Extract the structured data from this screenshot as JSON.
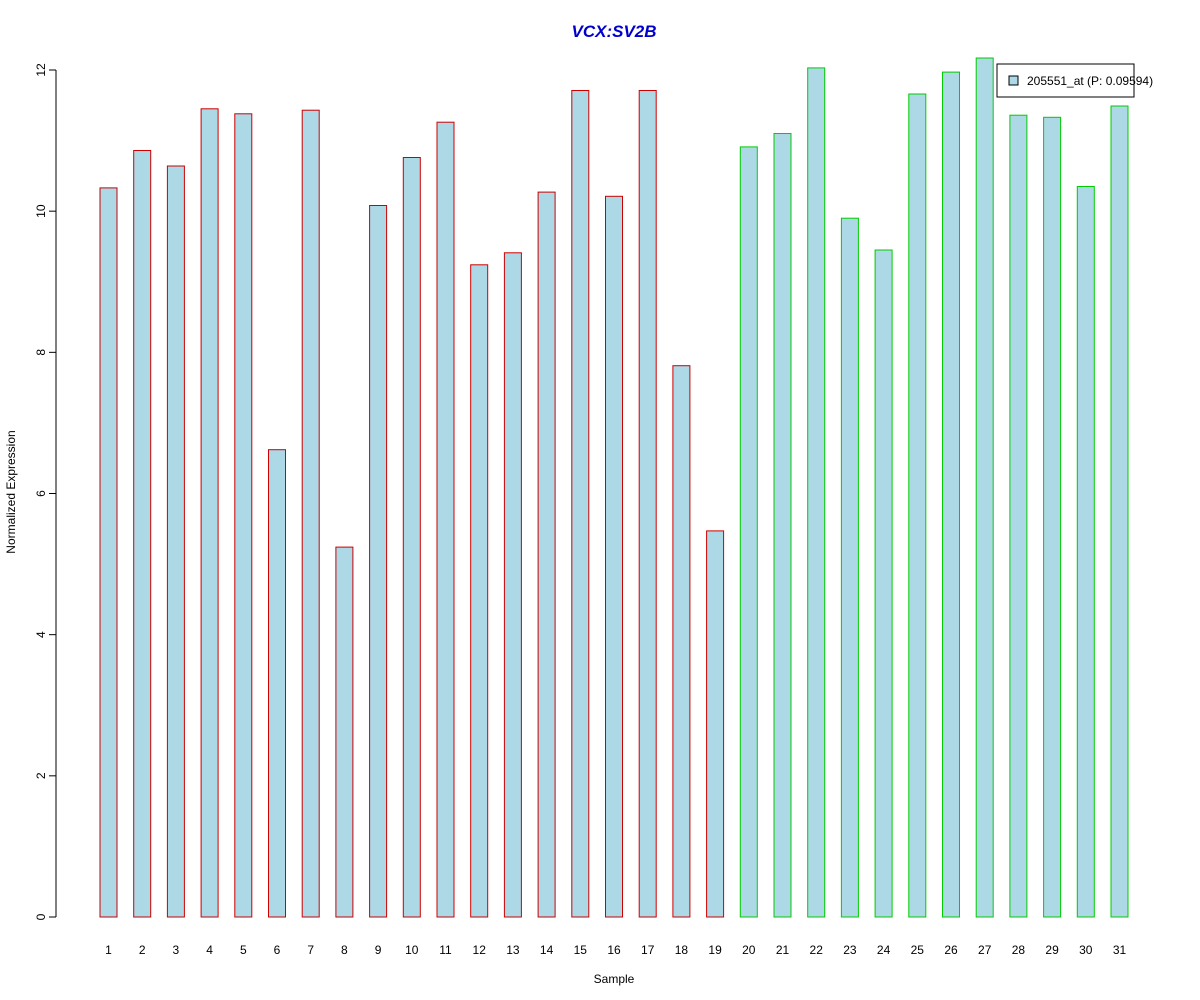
{
  "chart_data": {
    "type": "bar",
    "title": "VCX:SV2B",
    "title_color": "#0000CC",
    "xlabel": "Sample",
    "ylabel": "Normalized Expression",
    "ylim": [
      0,
      12
    ],
    "yticks": [
      0,
      2,
      4,
      6,
      8,
      10,
      12
    ],
    "grid": false,
    "legend_position": "top-right",
    "bar_fill": "#ADD8E6",
    "categories": [
      "1",
      "2",
      "3",
      "4",
      "5",
      "6",
      "7",
      "8",
      "9",
      "10",
      "11",
      "12",
      "13",
      "14",
      "15",
      "16",
      "17",
      "18",
      "19",
      "20",
      "21",
      "22",
      "23",
      "24",
      "25",
      "26",
      "27",
      "28",
      "29",
      "30",
      "31"
    ],
    "series": [
      {
        "name": "205551_at (P: 0.09594)",
        "values": [
          10.33,
          10.86,
          10.64,
          11.45,
          11.38,
          6.62,
          11.43,
          5.24,
          10.08,
          10.76,
          11.26,
          9.24,
          9.41,
          10.27,
          11.71,
          10.21,
          11.71,
          7.81,
          5.47,
          10.91,
          11.1,
          12.03,
          9.9,
          9.45,
          11.66,
          11.97,
          12.17,
          11.36,
          11.33,
          10.35,
          11.49
        ]
      }
    ],
    "groups": [
      {
        "samples": "1-19",
        "border_color": "#CC0000"
      },
      {
        "samples": "20-31",
        "border_color": "#00CC00"
      }
    ],
    "bar_border_colors": [
      "#CC0000",
      "#CC0000",
      "#CC0000",
      "#CC0000",
      "#CC0000",
      "#CC0000",
      "#CC0000",
      "#CC0000",
      "#CC0000",
      "#CC0000",
      "#CC0000",
      "#CC0000",
      "#CC0000",
      "#CC0000",
      "#CC0000",
      "#CC0000",
      "#CC0000",
      "#CC0000",
      "#CC0000",
      "#00CC00",
      "#00CC00",
      "#00CC00",
      "#00CC00",
      "#00CC00",
      "#00CC00",
      "#00CC00",
      "#00CC00",
      "#00CC00",
      "#00CC00",
      "#00CC00",
      "#00CC00"
    ]
  }
}
